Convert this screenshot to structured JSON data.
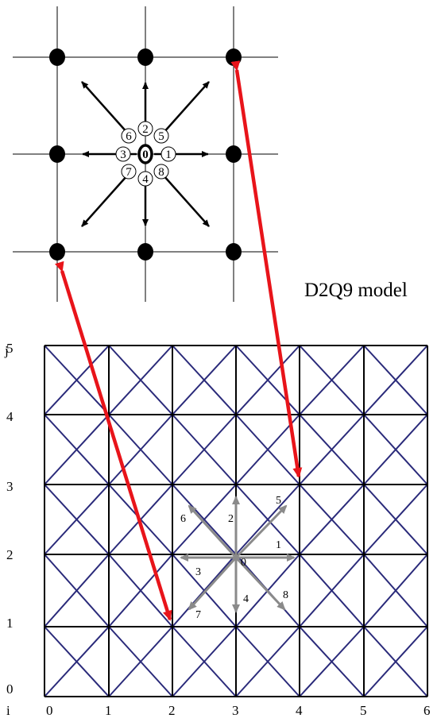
{
  "caption": "D2Q9 model",
  "stencil": {
    "directions": [
      "0",
      "1",
      "2",
      "3",
      "4",
      "5",
      "6",
      "7",
      "8"
    ]
  },
  "lattice": {
    "i_axis_label": "i",
    "j_axis_label": "j",
    "i_ticks": [
      "0",
      "1",
      "2",
      "3",
      "4",
      "5",
      "6"
    ],
    "j_ticks": [
      "0",
      "1",
      "2",
      "3",
      "4",
      "5"
    ],
    "center_label": "0",
    "direction_labels": [
      "1",
      "2",
      "3",
      "4",
      "5",
      "6",
      "7",
      "8"
    ]
  },
  "colors": {
    "grid_line": "#000000",
    "diagonal_line": "#2a2a7a",
    "lattice_vector": "#8a8a8a",
    "correspondence_arrow": "#e8141a",
    "node": "#000000"
  }
}
